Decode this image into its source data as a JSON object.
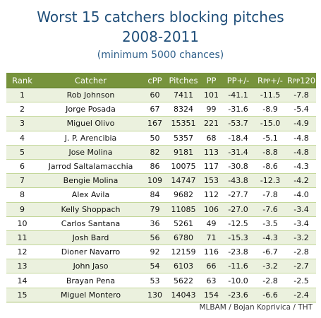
{
  "title_line1": "Worst 15 catchers blocking pitches",
  "title_line2": "2008-2011",
  "subtitle": "(minimum 5000 chances)",
  "columns": {
    "rank": "Rank",
    "catcher": "Catcher",
    "cpp": "cPP",
    "pitches": "Pitches",
    "pp": "PP",
    "pp_pm": "PP+/-",
    "rpp_pm_R": "R",
    "rpp_pm_sub": "PP",
    "rpp_pm_tail": "+/-",
    "rpp120_R": "R",
    "rpp120_sub": "PP",
    "rpp120_tail": "120"
  },
  "rows": [
    {
      "rank": "1",
      "catcher": "Rob Johnson",
      "cpp": "60",
      "pitches": "7411",
      "pp": "101",
      "pp_pm": "-41.1",
      "rpp_pm": "-11.5",
      "rpp120": "-7.8"
    },
    {
      "rank": "2",
      "catcher": "Jorge Posada",
      "cpp": "67",
      "pitches": "8324",
      "pp": "99",
      "pp_pm": "-31.6",
      "rpp_pm": "-8.9",
      "rpp120": "-5.4"
    },
    {
      "rank": "3",
      "catcher": "Miguel Olivo",
      "cpp": "167",
      "pitches": "15351",
      "pp": "221",
      "pp_pm": "-53.7",
      "rpp_pm": "-15.0",
      "rpp120": "-4.9"
    },
    {
      "rank": "4",
      "catcher": "J. P. Arencibia",
      "cpp": "50",
      "pitches": "5357",
      "pp": "68",
      "pp_pm": "-18.4",
      "rpp_pm": "-5.1",
      "rpp120": "-4.8"
    },
    {
      "rank": "5",
      "catcher": "Jose Molina",
      "cpp": "82",
      "pitches": "9181",
      "pp": "113",
      "pp_pm": "-31.4",
      "rpp_pm": "-8.8",
      "rpp120": "-4.8"
    },
    {
      "rank": "6",
      "catcher": "Jarrod Saltalamacchia",
      "cpp": "86",
      "pitches": "10075",
      "pp": "117",
      "pp_pm": "-30.8",
      "rpp_pm": "-8.6",
      "rpp120": "-4.3"
    },
    {
      "rank": "7",
      "catcher": "Bengie Molina",
      "cpp": "109",
      "pitches": "14747",
      "pp": "153",
      "pp_pm": "-43.8",
      "rpp_pm": "-12.3",
      "rpp120": "-4.2"
    },
    {
      "rank": "8",
      "catcher": "Alex Avila",
      "cpp": "84",
      "pitches": "9682",
      "pp": "112",
      "pp_pm": "-27.7",
      "rpp_pm": "-7.8",
      "rpp120": "-4.0"
    },
    {
      "rank": "9",
      "catcher": "Kelly Shoppach",
      "cpp": "79",
      "pitches": "11085",
      "pp": "106",
      "pp_pm": "-27.0",
      "rpp_pm": "-7.6",
      "rpp120": "-3.4"
    },
    {
      "rank": "10",
      "catcher": "Carlos Santana",
      "cpp": "36",
      "pitches": "5261",
      "pp": "49",
      "pp_pm": "-12.5",
      "rpp_pm": "-3.5",
      "rpp120": "-3.4"
    },
    {
      "rank": "11",
      "catcher": "Josh Bard",
      "cpp": "56",
      "pitches": "6780",
      "pp": "71",
      "pp_pm": "-15.3",
      "rpp_pm": "-4.3",
      "rpp120": "-3.2"
    },
    {
      "rank": "12",
      "catcher": "Dioner Navarro",
      "cpp": "92",
      "pitches": "12159",
      "pp": "116",
      "pp_pm": "-23.8",
      "rpp_pm": "-6.7",
      "rpp120": "-2.8"
    },
    {
      "rank": "13",
      "catcher": "John Jaso",
      "cpp": "54",
      "pitches": "6103",
      "pp": "66",
      "pp_pm": "-11.6",
      "rpp_pm": "-3.2",
      "rpp120": "-2.7"
    },
    {
      "rank": "14",
      "catcher": "Brayan Pena",
      "cpp": "53",
      "pitches": "5622",
      "pp": "63",
      "pp_pm": "-10.0",
      "rpp_pm": "-2.8",
      "rpp120": "-2.5"
    },
    {
      "rank": "15",
      "catcher": "Miguel Montero",
      "cpp": "130",
      "pitches": "14043",
      "pp": "154",
      "pp_pm": "-23.6",
      "rpp_pm": "-6.6",
      "rpp120": "-2.4"
    }
  ],
  "source": "MLBAM / Bojan Koprivica / THT"
}
